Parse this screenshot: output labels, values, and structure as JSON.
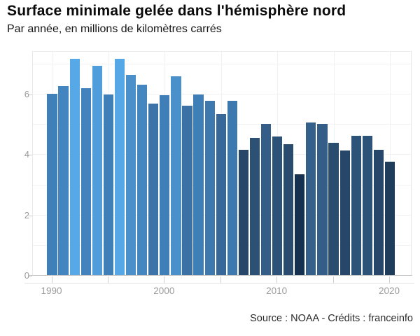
{
  "header": {
    "title": "Surface minimale gelée dans l'hémisphère nord",
    "subtitle": "Par année, en millions de kilomètres carrés"
  },
  "footer": {
    "source": "Source : NOAA - Crédits : franceinfo"
  },
  "chart_data": {
    "type": "bar",
    "title": "Surface minimale gelée dans l'hémisphère nord",
    "subtitle": "Par année, en millions de kilomètres carrés",
    "xlabel": "",
    "ylabel": "millions de kilomètres carrés",
    "x": [
      1990,
      1991,
      1992,
      1993,
      1994,
      1995,
      1996,
      1997,
      1998,
      1999,
      2000,
      2001,
      2002,
      2003,
      2004,
      2005,
      2006,
      2007,
      2008,
      2009,
      2010,
      2011,
      2012,
      2013,
      2014,
      2015,
      2016,
      2017,
      2018,
      2019,
      2020
    ],
    "values": [
      6.03,
      6.28,
      7.19,
      6.21,
      6.96,
      6.01,
      7.17,
      6.64,
      6.32,
      5.7,
      5.97,
      6.61,
      5.62,
      6.0,
      5.79,
      5.34,
      5.78,
      4.16,
      4.57,
      5.03,
      4.61,
      4.36,
      3.35,
      5.07,
      5.02,
      4.39,
      4.14,
      4.64,
      4.64,
      4.17,
      3.78
    ],
    "ylim": [
      0,
      7.43
    ],
    "grid": true,
    "legend": "none",
    "y_grid_values": [
      0,
      1,
      2,
      3,
      4,
      5,
      6,
      7
    ],
    "y_label_values": [
      0,
      2,
      4,
      6
    ],
    "x_tick_years": [
      1990,
      1995,
      2000,
      2005,
      2010,
      2015,
      2020
    ],
    "x_label_years": [
      1990,
      2000,
      2010,
      2020
    ],
    "color_scale": [
      [
        3.3,
        "#14304e"
      ],
      [
        3.8,
        "#1f3d5c"
      ],
      [
        4.15,
        "#264769"
      ],
      [
        4.4,
        "#2a4c6e"
      ],
      [
        4.62,
        "#2d5277"
      ],
      [
        5.03,
        "#345e88"
      ],
      [
        5.1,
        "#35618b"
      ],
      [
        5.35,
        "#38689a"
      ],
      [
        5.65,
        "#3b72a6"
      ],
      [
        5.8,
        "#3d79af"
      ],
      [
        6.0,
        "#3f7fb8"
      ],
      [
        6.25,
        "#4284bf"
      ],
      [
        6.35,
        "#4487c1"
      ],
      [
        6.62,
        "#4a90cb"
      ],
      [
        6.97,
        "#509ddb"
      ],
      [
        7.2,
        "#57a8e8"
      ]
    ]
  }
}
